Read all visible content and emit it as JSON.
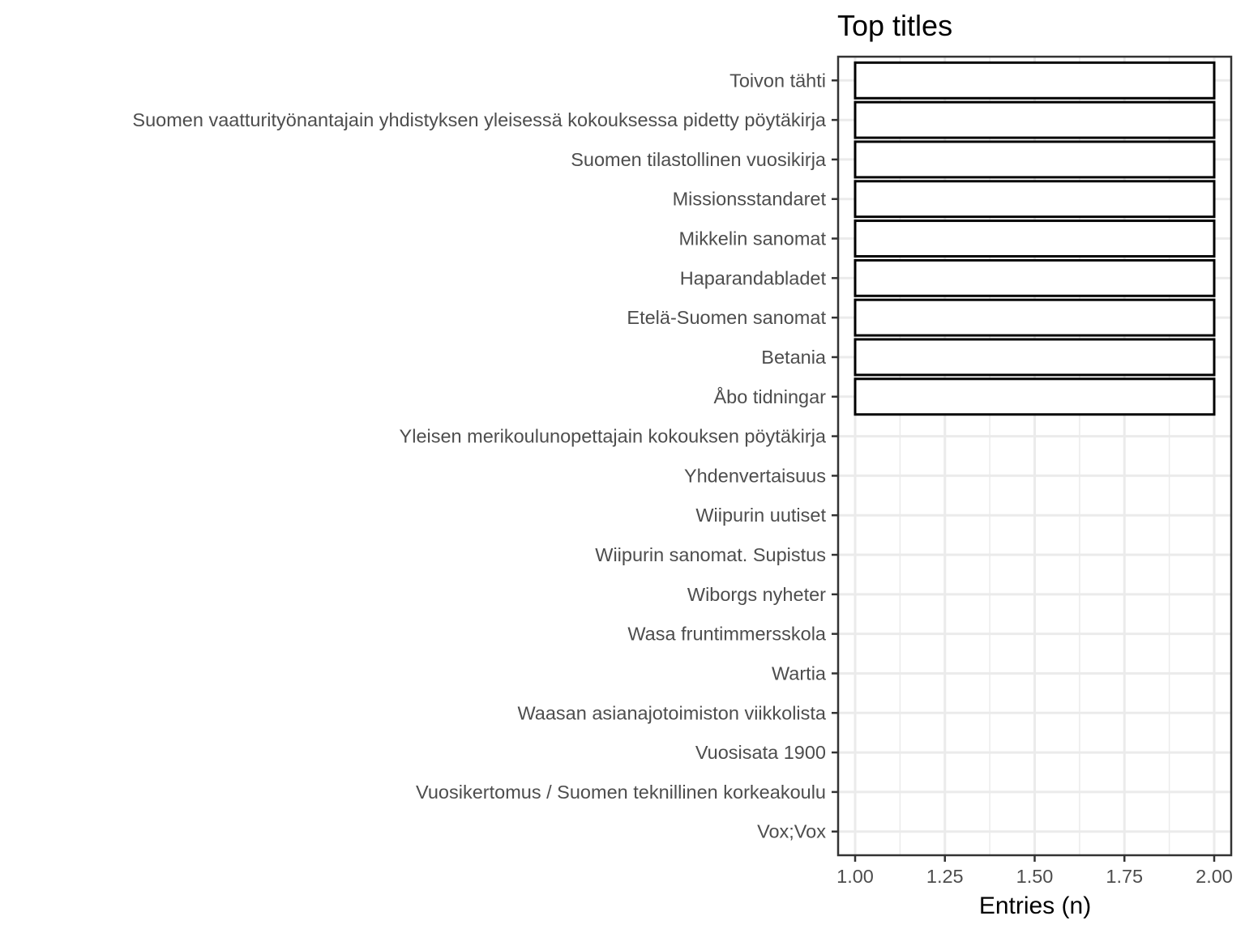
{
  "chart_data": {
    "type": "bar",
    "orientation": "horizontal",
    "title": "Top titles",
    "xlabel": "Entries (n)",
    "ylabel": "",
    "xlim": [
      1.0,
      2.0
    ],
    "x_ticks": [
      "1.00",
      "1.25",
      "1.50",
      "1.75",
      "2.00"
    ],
    "grid": true,
    "legend": "none",
    "bar_fill": "#ffffff",
    "bar_stroke": "#000000",
    "categories": [
      "Toivon tähti",
      "Suomen vaatturityönantajain yhdistyksen yleisessä kokouksessa pidetty pöytäkirja",
      "Suomen tilastollinen vuosikirja",
      "Missionsstandaret",
      "Mikkelin sanomat",
      "Haparandabladet",
      "Etelä-Suomen sanomat",
      "Betania",
      "Åbo tidningar",
      "Yleisen merikoulunopettajain kokouksen pöytäkirja",
      "Yhdenvertaisuus",
      "Wiipurin uutiset",
      "Wiipurin sanomat. Supistus",
      "Wiborgs nyheter",
      "Wasa fruntimmersskola",
      "Wartia",
      "Waasan asianajotoimiston viikkolista",
      "Vuosisata 1900",
      "Vuosikertomus / Suomen teknillinen korkeakoulu",
      "Vox;Vox"
    ],
    "values": [
      2,
      2,
      2,
      2,
      2,
      2,
      2,
      2,
      2,
      1,
      1,
      1,
      1,
      1,
      1,
      1,
      1,
      1,
      1,
      1
    ]
  }
}
